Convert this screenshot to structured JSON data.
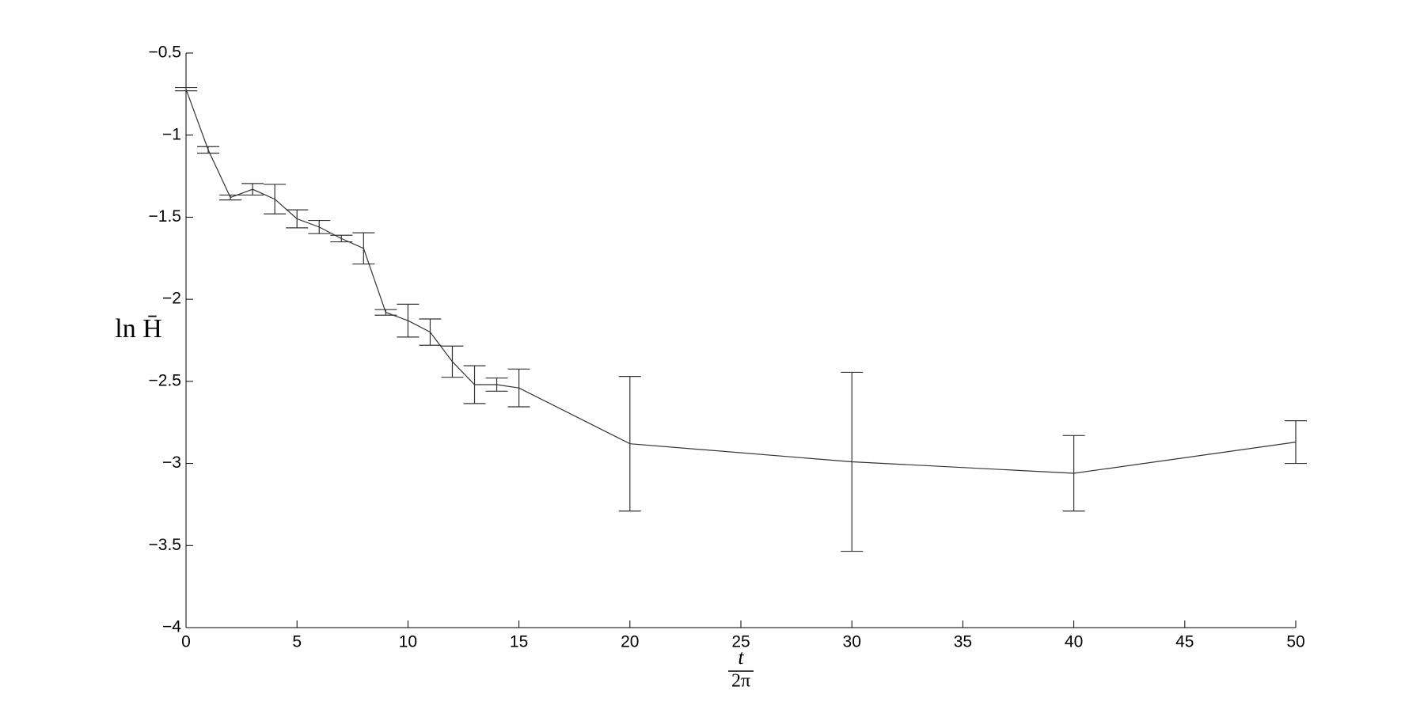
{
  "chart_data": {
    "type": "errorbar-line",
    "ylabel": "ln H̄",
    "xlabel_numerator": "t",
    "xlabel_denominator": "2π",
    "x": [
      0,
      1,
      2,
      3,
      4,
      5,
      6,
      7,
      8,
      9,
      10,
      11,
      12,
      13,
      14,
      15,
      20,
      30,
      40,
      50
    ],
    "values": [
      -0.72,
      -1.09,
      -1.38,
      -1.33,
      -1.39,
      -1.51,
      -1.56,
      -1.63,
      -1.69,
      -2.08,
      -2.13,
      -2.2,
      -2.38,
      -2.52,
      -2.52,
      -2.54,
      -2.88,
      -2.99,
      -3.06,
      -2.87
    ],
    "errors": [
      0.01,
      0.02,
      0.015,
      0.035,
      0.09,
      0.055,
      0.04,
      0.02,
      0.095,
      0.017,
      0.1,
      0.08,
      0.095,
      0.115,
      0.04,
      0.115,
      0.41,
      0.545,
      0.23,
      0.13
    ],
    "color": "#333333",
    "xlim": [
      0,
      50
    ],
    "ylim": [
      -4,
      -0.5
    ],
    "xticks": [
      0,
      5,
      10,
      15,
      20,
      25,
      30,
      35,
      40,
      45,
      50
    ],
    "yticks": [
      {
        "value": -4,
        "label": "−4"
      },
      {
        "value": -3.5,
        "label": "−3.5"
      },
      {
        "value": -3,
        "label": "−3"
      },
      {
        "value": -2.5,
        "label": "−2.5"
      },
      {
        "value": -2,
        "label": "−2"
      },
      {
        "value": -1.5,
        "label": "−1.5"
      },
      {
        "value": -1,
        "label": "−1"
      },
      {
        "value": -0.5,
        "label": "−0.5"
      }
    ],
    "grid": false
  }
}
